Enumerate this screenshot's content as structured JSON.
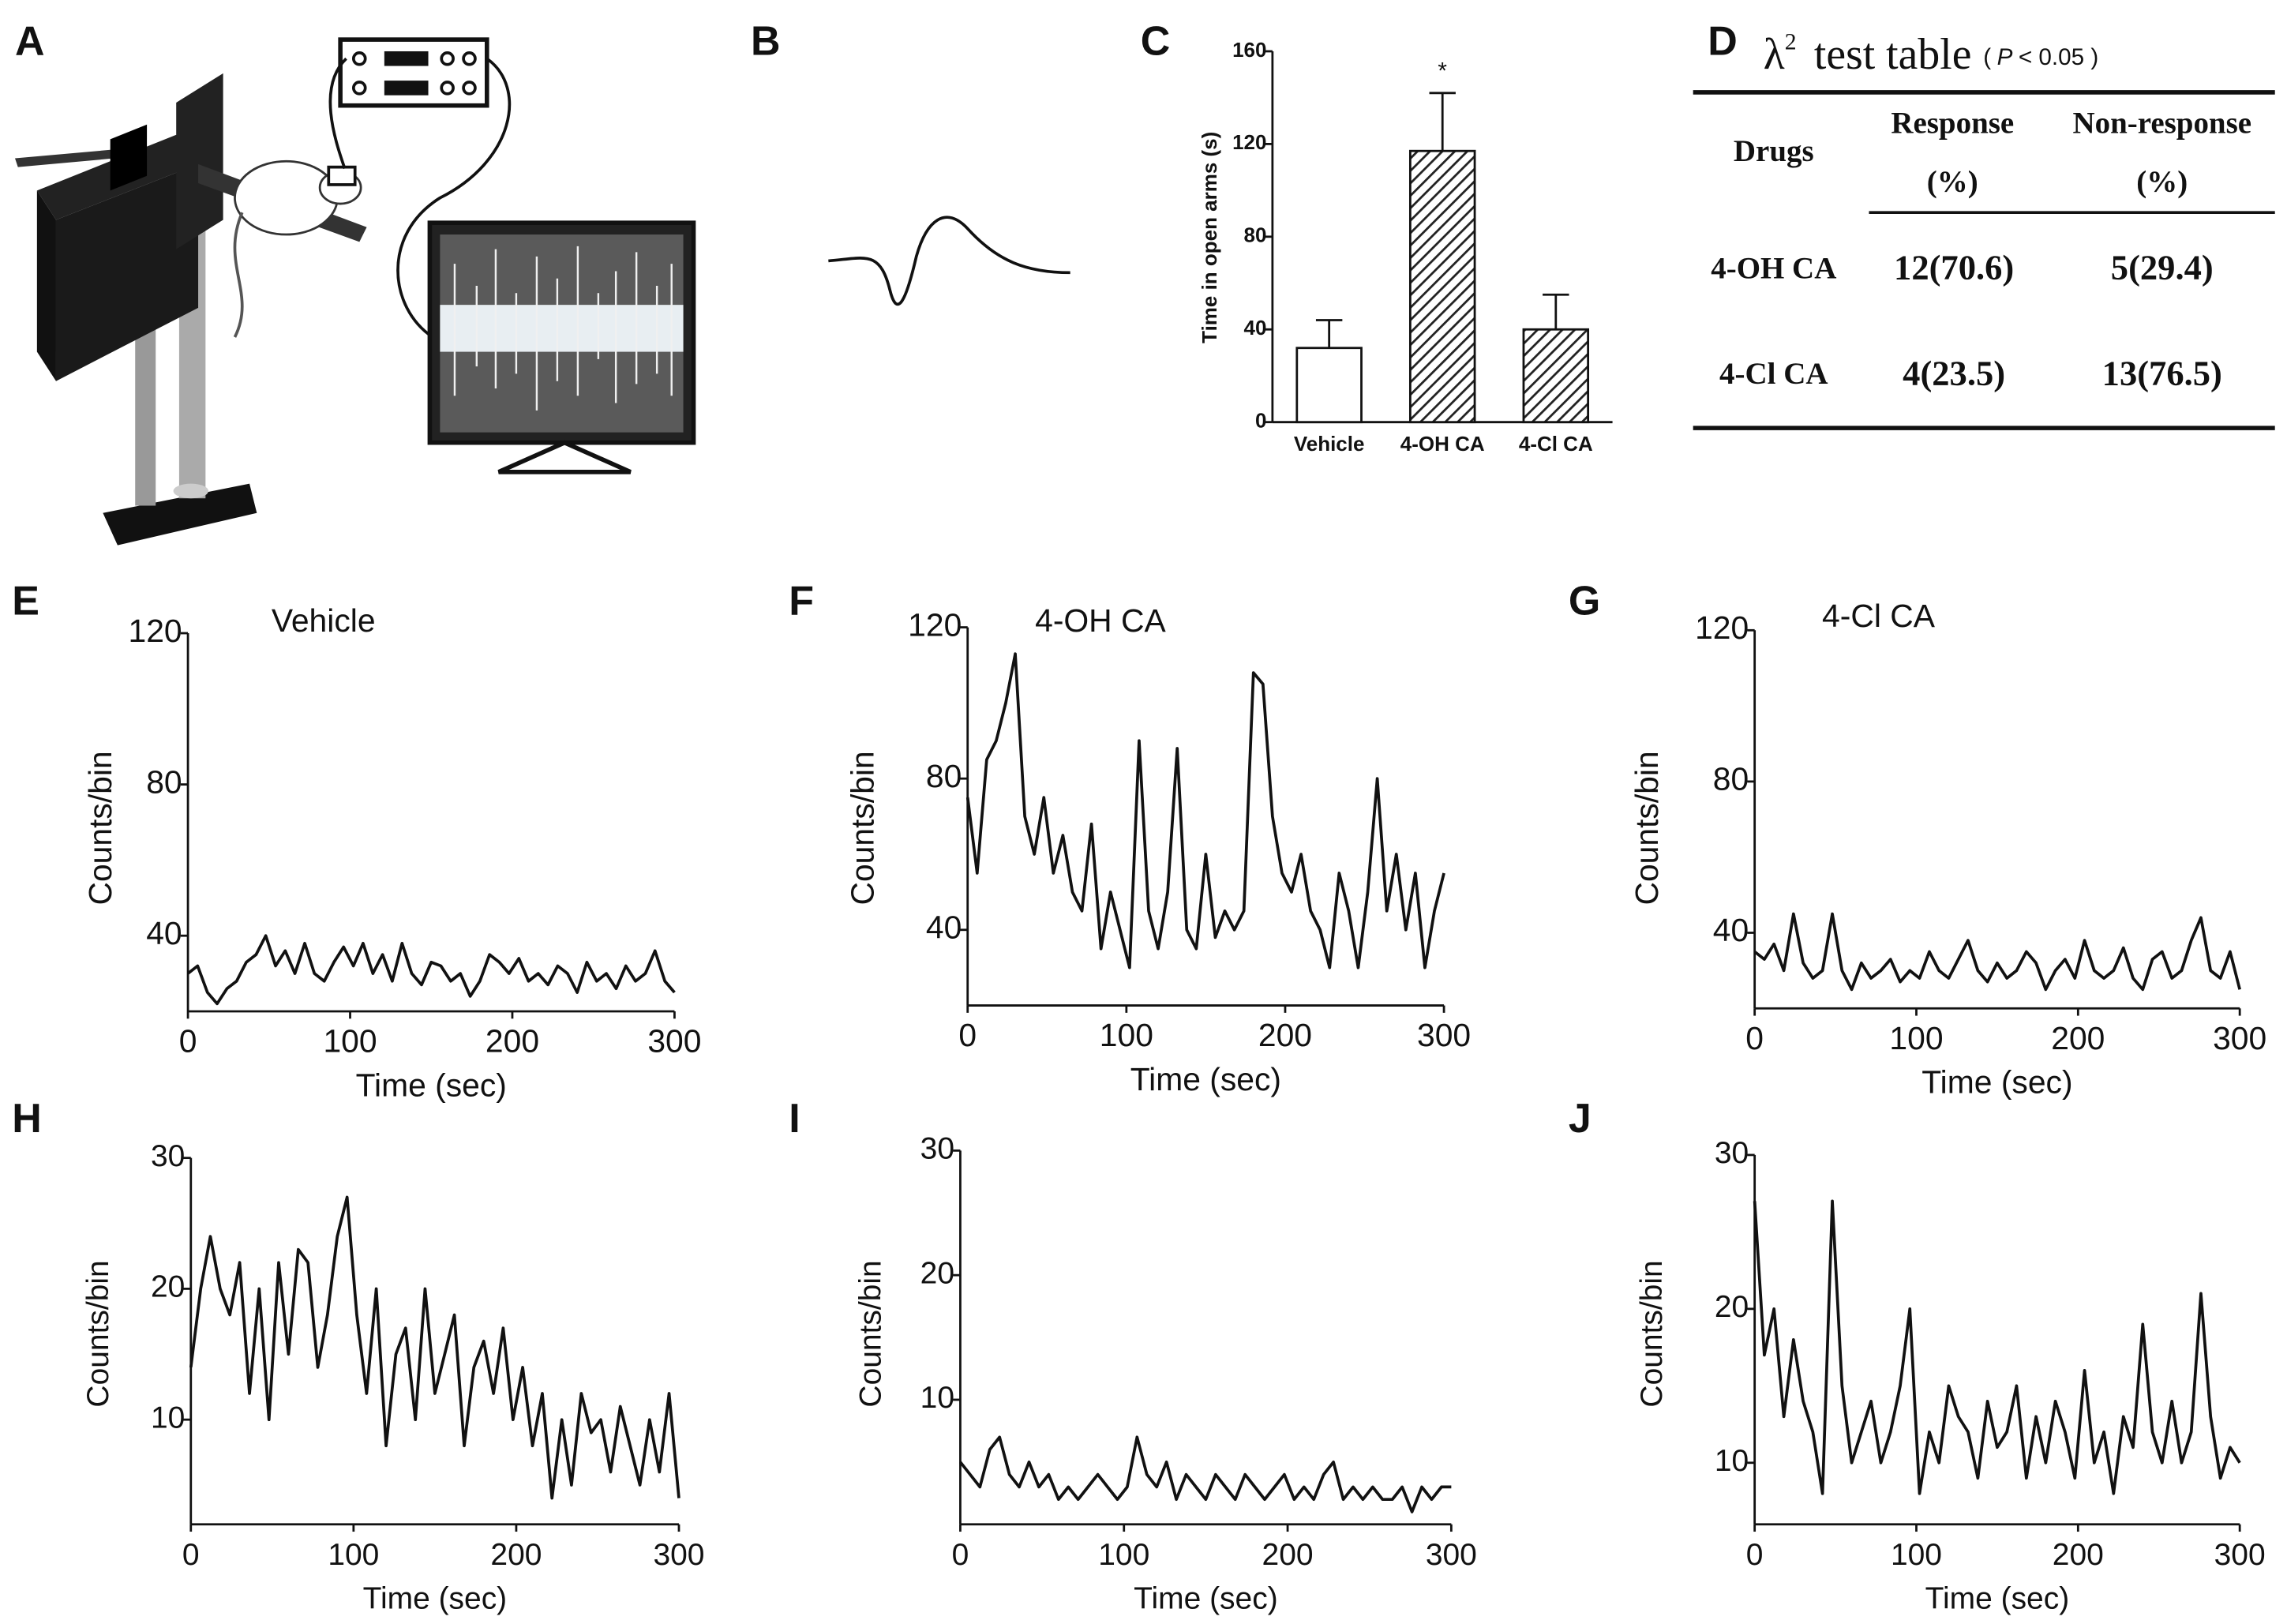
{
  "figure": {
    "panel_labels": [
      "A",
      "B",
      "C",
      "D",
      "E",
      "F",
      "G",
      "H",
      "I",
      "J"
    ]
  },
  "table": {
    "symbol": "λ",
    "superscript": "2",
    "title": "test table",
    "note_open": "(",
    "note_italic": "P",
    "note_rest": "< 0.05 )",
    "header": [
      [
        "Drugs"
      ],
      [
        "Response",
        "(%)"
      ],
      [
        "Non-response",
        "(%)"
      ]
    ],
    "rows": [
      [
        "4-OH CA",
        "12(70.6)",
        "5(29.4)"
      ],
      [
        "4-Cl CA",
        "4(23.5)",
        "13(76.5)"
      ]
    ]
  },
  "chart_data": [
    {
      "type": "bar",
      "ylabel": "Time in open arms (s)",
      "categories": [
        "Vehicle",
        "4-OH CA",
        "4-Cl CA"
      ],
      "values": [
        32,
        117,
        40
      ],
      "errors": [
        12,
        25,
        15
      ],
      "colors": [
        "#ffffff",
        "hatch",
        "hatch"
      ],
      "annotations": [
        {
          "text": "*",
          "index": 1
        }
      ],
      "ylim": [
        0,
        160
      ],
      "yticks": [
        0,
        40,
        80,
        120,
        160
      ]
    },
    {
      "type": "line",
      "title": "Vehicle",
      "xlabel": "Time (sec)",
      "ylabel": "Counts/bin",
      "color": "#111111",
      "x": [
        0,
        6,
        12,
        18,
        24,
        30,
        36,
        42,
        48,
        54,
        60,
        66,
        72,
        78,
        84,
        90,
        96,
        102,
        108,
        114,
        120,
        126,
        132,
        138,
        144,
        150,
        156,
        162,
        168,
        174,
        180,
        186,
        192,
        198,
        204,
        210,
        216,
        222,
        228,
        234,
        240,
        246,
        252,
        258,
        264,
        270,
        276,
        282,
        288,
        294,
        300
      ],
      "values": [
        30,
        32,
        25,
        22,
        26,
        28,
        33,
        35,
        40,
        32,
        36,
        30,
        38,
        30,
        28,
        33,
        37,
        32,
        38,
        30,
        35,
        28,
        38,
        30,
        27,
        33,
        32,
        28,
        30,
        24,
        28,
        35,
        33,
        30,
        34,
        28,
        30,
        27,
        32,
        30,
        25,
        33,
        28,
        30,
        26,
        32,
        28,
        30,
        36,
        28,
        25
      ],
      "xlim": [
        0,
        300
      ],
      "xticks": [
        0,
        100,
        200,
        300
      ],
      "ylim": [
        20,
        120
      ],
      "yticks": [
        40,
        80,
        120
      ]
    },
    {
      "type": "line",
      "title": "4-OH CA",
      "xlabel": "Time (sec)",
      "ylabel": "Counts/bin",
      "color": "#111111",
      "x": [
        0,
        6,
        12,
        18,
        24,
        30,
        36,
        42,
        48,
        54,
        60,
        66,
        72,
        78,
        84,
        90,
        96,
        102,
        108,
        114,
        120,
        126,
        132,
        138,
        144,
        150,
        156,
        162,
        168,
        174,
        180,
        186,
        192,
        198,
        204,
        210,
        216,
        222,
        228,
        234,
        240,
        246,
        252,
        258,
        264,
        270,
        276,
        282,
        288,
        294,
        300
      ],
      "values": [
        75,
        55,
        85,
        90,
        100,
        113,
        70,
        60,
        75,
        55,
        65,
        50,
        45,
        68,
        35,
        50,
        40,
        30,
        90,
        45,
        35,
        50,
        88,
        40,
        35,
        60,
        38,
        45,
        40,
        45,
        108,
        105,
        70,
        55,
        50,
        60,
        45,
        40,
        30,
        55,
        45,
        30,
        50,
        80,
        45,
        60,
        40,
        55,
        30,
        45,
        55
      ],
      "xlim": [
        0,
        300
      ],
      "xticks": [
        0,
        100,
        200,
        300
      ],
      "ylim": [
        20,
        120
      ],
      "yticks": [
        40,
        80,
        120
      ]
    },
    {
      "type": "line",
      "title": "4-Cl CA",
      "xlabel": "Time (sec)",
      "ylabel": "Counts/bin",
      "color": "#111111",
      "x": [
        0,
        6,
        12,
        18,
        24,
        30,
        36,
        42,
        48,
        54,
        60,
        66,
        72,
        78,
        84,
        90,
        96,
        102,
        108,
        114,
        120,
        126,
        132,
        138,
        144,
        150,
        156,
        162,
        168,
        174,
        180,
        186,
        192,
        198,
        204,
        210,
        216,
        222,
        228,
        234,
        240,
        246,
        252,
        258,
        264,
        270,
        276,
        282,
        288,
        294,
        300
      ],
      "values": [
        35,
        33,
        37,
        30,
        45,
        32,
        28,
        30,
        45,
        30,
        25,
        32,
        28,
        30,
        33,
        27,
        30,
        28,
        35,
        30,
        28,
        33,
        38,
        30,
        27,
        32,
        28,
        30,
        35,
        32,
        25,
        30,
        33,
        28,
        38,
        30,
        28,
        30,
        36,
        28,
        25,
        33,
        35,
        28,
        30,
        38,
        44,
        30,
        28,
        35,
        25
      ],
      "xlim": [
        0,
        300
      ],
      "xticks": [
        0,
        100,
        200,
        300
      ],
      "ylim": [
        20,
        120
      ],
      "yticks": [
        40,
        80,
        120
      ]
    },
    {
      "type": "line",
      "xlabel": "Time (sec)",
      "ylabel": "Counts/bin",
      "color": "#111111",
      "x": [
        0,
        6,
        12,
        18,
        24,
        30,
        36,
        42,
        48,
        54,
        60,
        66,
        72,
        78,
        84,
        90,
        96,
        102,
        108,
        114,
        120,
        126,
        132,
        138,
        144,
        150,
        156,
        162,
        168,
        174,
        180,
        186,
        192,
        198,
        204,
        210,
        216,
        222,
        228,
        234,
        240,
        246,
        252,
        258,
        264,
        270,
        276,
        282,
        288,
        294,
        300
      ],
      "values": [
        14,
        20,
        24,
        20,
        18,
        22,
        12,
        20,
        10,
        22,
        15,
        23,
        22,
        14,
        18,
        24,
        27,
        18,
        12,
        20,
        8,
        15,
        17,
        10,
        20,
        12,
        15,
        18,
        8,
        14,
        16,
        12,
        17,
        10,
        14,
        8,
        12,
        4,
        10,
        5,
        12,
        9,
        10,
        6,
        11,
        8,
        5,
        10,
        6,
        12,
        4
      ],
      "xlim": [
        0,
        300
      ],
      "xticks": [
        0,
        100,
        200,
        300
      ],
      "ylim": [
        2,
        30
      ],
      "yticks": [
        10,
        20,
        30
      ]
    },
    {
      "type": "line",
      "xlabel": "Time (sec)",
      "ylabel": "Counts/bin",
      "color": "#111111",
      "x": [
        0,
        6,
        12,
        18,
        24,
        30,
        36,
        42,
        48,
        54,
        60,
        66,
        72,
        78,
        84,
        90,
        96,
        102,
        108,
        114,
        120,
        126,
        132,
        138,
        144,
        150,
        156,
        162,
        168,
        174,
        180,
        186,
        192,
        198,
        204,
        210,
        216,
        222,
        228,
        234,
        240,
        246,
        252,
        258,
        264,
        270,
        276,
        282,
        288,
        294,
        300
      ],
      "values": [
        5,
        4,
        3,
        6,
        7,
        4,
        3,
        5,
        3,
        4,
        2,
        3,
        2,
        3,
        4,
        3,
        2,
        3,
        7,
        4,
        3,
        5,
        2,
        4,
        3,
        2,
        4,
        3,
        2,
        4,
        3,
        2,
        3,
        4,
        2,
        3,
        2,
        4,
        5,
        2,
        3,
        2,
        3,
        2,
        2,
        3,
        1,
        3,
        2,
        3,
        3
      ],
      "xlim": [
        0,
        300
      ],
      "xticks": [
        0,
        100,
        200,
        300
      ],
      "ylim": [
        0,
        30
      ],
      "yticks": [
        10,
        20,
        30
      ]
    },
    {
      "type": "line",
      "xlabel": "Time (sec)",
      "ylabel": "Counts/bin",
      "color": "#111111",
      "x": [
        0,
        6,
        12,
        18,
        24,
        30,
        36,
        42,
        48,
        54,
        60,
        66,
        72,
        78,
        84,
        90,
        96,
        102,
        108,
        114,
        120,
        126,
        132,
        138,
        144,
        150,
        156,
        162,
        168,
        174,
        180,
        186,
        192,
        198,
        204,
        210,
        216,
        222,
        228,
        234,
        240,
        246,
        252,
        258,
        264,
        270,
        276,
        282,
        288,
        294,
        300
      ],
      "values": [
        27,
        17,
        20,
        13,
        18,
        14,
        12,
        8,
        27,
        15,
        10,
        12,
        14,
        10,
        12,
        15,
        20,
        8,
        12,
        10,
        15,
        13,
        12,
        9,
        14,
        11,
        12,
        15,
        9,
        13,
        10,
        14,
        12,
        9,
        16,
        10,
        12,
        8,
        13,
        11,
        19,
        12,
        10,
        14,
        10,
        12,
        21,
        13,
        9,
        11,
        10
      ],
      "xlim": [
        0,
        300
      ],
      "xticks": [
        0,
        100,
        200,
        300
      ],
      "ylim": [
        6,
        30
      ],
      "yticks": [
        10,
        20,
        30
      ]
    }
  ]
}
